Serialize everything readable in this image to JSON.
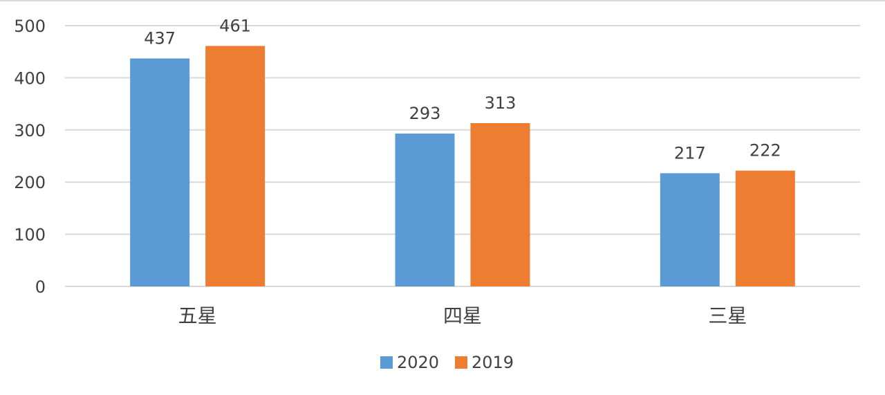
{
  "chart_data": {
    "type": "bar",
    "categories": [
      "五星",
      "四星",
      "三星"
    ],
    "series": [
      {
        "name": "2020",
        "values": [
          437,
          293,
          217
        ],
        "color": "#5B9BD5"
      },
      {
        "name": "2019",
        "values": [
          461,
          313,
          222
        ],
        "color": "#ED7D31"
      }
    ],
    "yticks": [
      0,
      100,
      200,
      300,
      400,
      500
    ],
    "ylim": [
      0,
      500
    ],
    "grid": true,
    "legend": "bottom",
    "data_labels": true
  }
}
